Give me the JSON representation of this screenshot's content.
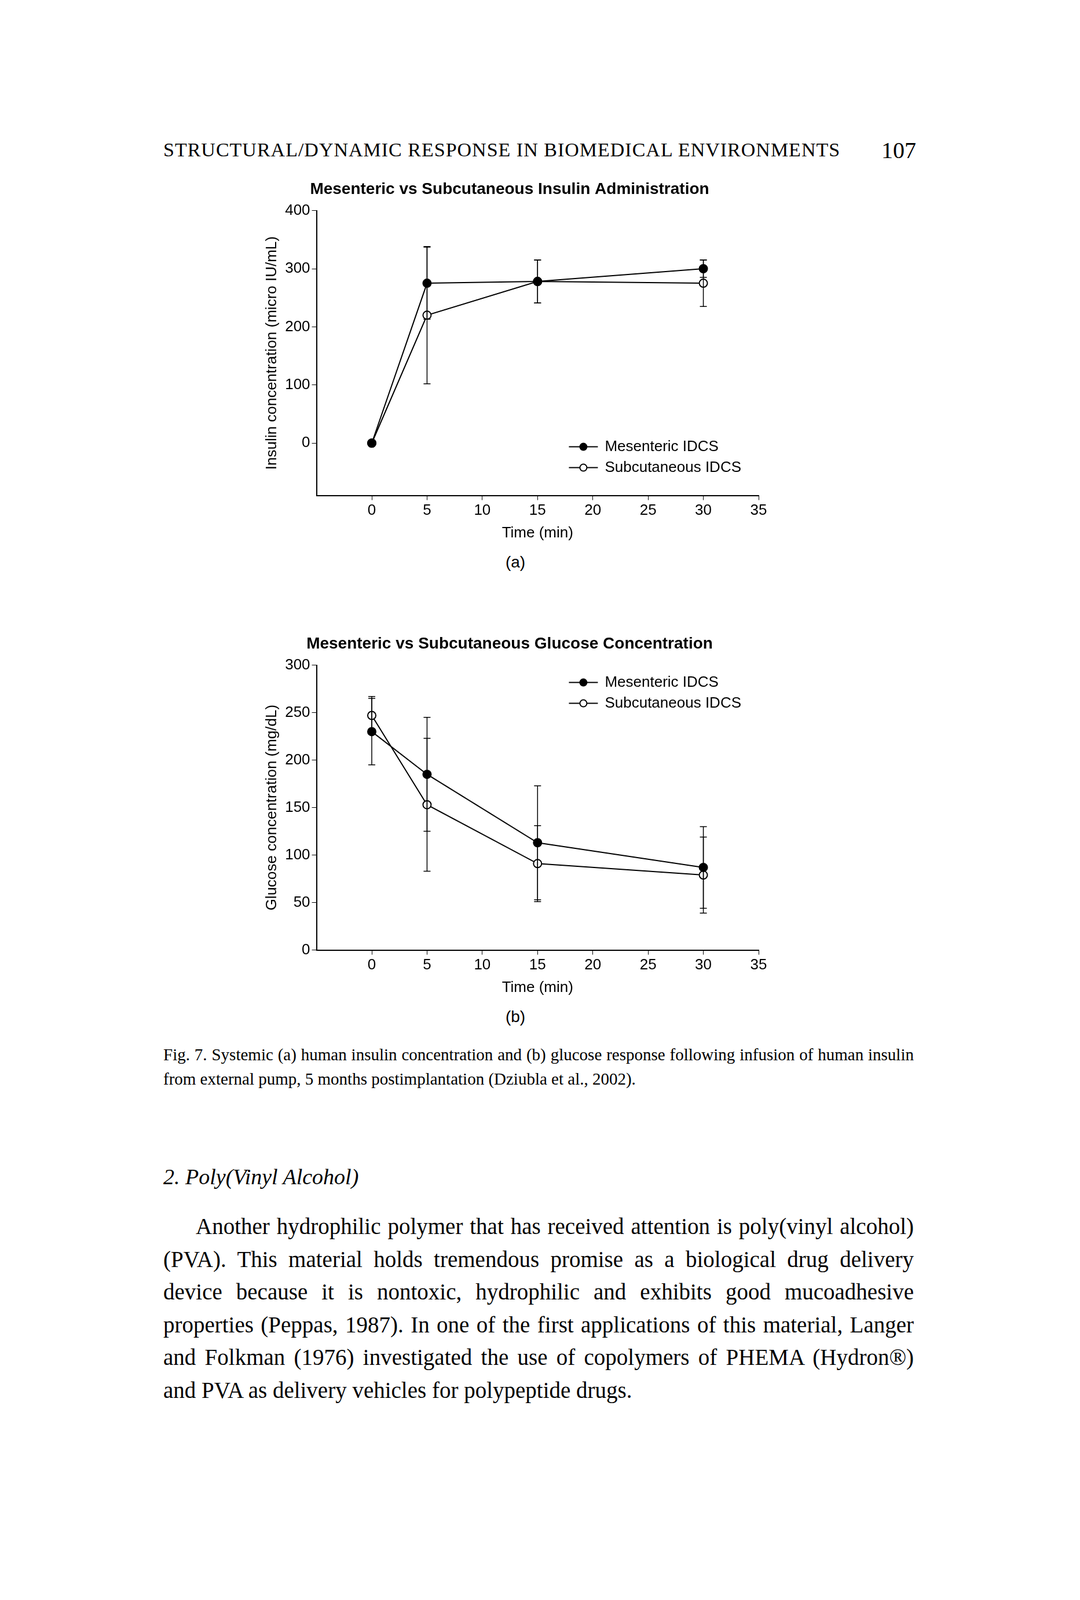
{
  "page": {
    "header": "STRUCTURAL/DYNAMIC RESPONSE IN BIOMEDICAL ENVIRONMENTS",
    "page_number": "107",
    "caption": "Fig. 7. Systemic (a) human insulin concentration and (b) glucose response following infusion of human insulin from external pump, 5 months postimplantation (Dziubla et al., 2002).",
    "section_heading": "2. Poly(Vinyl Alcohol)",
    "body": "Another hydrophilic polymer that has received attention is poly(vinyl alcohol) (PVA). This material holds tremendous promise as a biological drug delivery device because it is nontoxic, hydrophilic and exhibits good mucoadhesive properties (Peppas, 1987). In one of the first applications of this material, Langer and Folkman (1976) investigated the use of copolymers of PHEMA (Hydron®) and PVA as delivery vehicles for polypeptide drugs."
  },
  "chart_data": [
    {
      "type": "line",
      "panel": "(a)",
      "title": "Mesenteric vs Subcutaneous Insulin Administration",
      "x_label": "Time (min)",
      "y_label": "Insulin concentration (micro IU/mL)",
      "xlim": [
        -5,
        35
      ],
      "xticks": [
        0,
        5,
        10,
        15,
        20,
        25,
        30,
        35
      ],
      "ylim": [
        -90,
        400
      ],
      "yticks": [
        0,
        100,
        200,
        300,
        400
      ],
      "grid": false,
      "legend": "lower right",
      "x": [
        0,
        5,
        15,
        30
      ],
      "series": [
        {
          "name": "Mesenteric IDCS",
          "color": "#000000",
          "marker": "filled_circle",
          "values": [
            0,
            275,
            278,
            300
          ],
          "errors": [
            0,
            62,
            37,
            15
          ]
        },
        {
          "name": "Subcutaneous IDCS",
          "color": "#000000",
          "marker": "open_circle",
          "values": [
            0,
            220,
            278,
            275
          ],
          "errors": [
            0,
            118,
            37,
            40
          ]
        }
      ]
    },
    {
      "type": "line",
      "panel": "(b)",
      "title": "Mesenteric vs Subcutaneous Glucose Concentration",
      "x_label": "Time (min)",
      "y_label": "Glucose concentration (mg/dL)",
      "xlim": [
        -5,
        35
      ],
      "xticks": [
        0,
        5,
        10,
        15,
        20,
        25,
        30,
        35
      ],
      "ylim": [
        0,
        300
      ],
      "yticks": [
        0,
        50,
        100,
        150,
        200,
        250,
        300
      ],
      "grid": false,
      "legend": "upper right",
      "x": [
        0,
        5,
        15,
        30
      ],
      "series": [
        {
          "name": "Mesenteric IDCS",
          "color": "#000000",
          "marker": "filled_circle",
          "values": [
            230,
            185,
            113,
            87
          ],
          "errors": [
            35,
            60,
            60,
            43
          ]
        },
        {
          "name": "Subcutaneous IDCS",
          "color": "#000000",
          "marker": "open_circle",
          "values": [
            247,
            153,
            91,
            79
          ],
          "errors": [
            20,
            70,
            40,
            40
          ]
        }
      ]
    }
  ]
}
